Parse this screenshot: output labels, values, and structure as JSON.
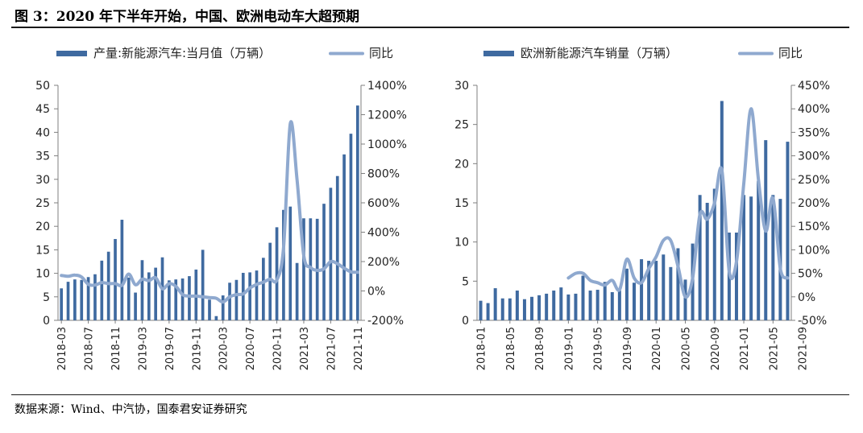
{
  "figure": {
    "title": "图 3：2020 年下半年开始，中国、欧洲电动车大超预期",
    "source": "数据来源：Wind、中汽协，国泰君安证券研究"
  },
  "colors": {
    "bar": "#3f6aa0",
    "line": "#8fa9cf",
    "axis": "#7f7f7f"
  },
  "chart_data": [
    {
      "type": "bar+line",
      "legend": {
        "bar": "产量:新能源汽车:当月值（万辆）",
        "line": "同比",
        "placement": "top"
      },
      "left_axis": {
        "ticks": [
          0,
          5,
          10,
          15,
          20,
          25,
          30,
          35,
          40,
          45,
          50
        ],
        "range": [
          0,
          50
        ]
      },
      "right_axis": {
        "ticks": [
          "-200%",
          "0%",
          "200%",
          "400%",
          "600%",
          "800%",
          "1000%",
          "1200%",
          "1400%"
        ],
        "range": [
          -200,
          1400
        ]
      },
      "x_tick_labels": [
        "2018-03",
        "2018-07",
        "2018-11",
        "2019-03",
        "2019-07",
        "2019-11",
        "2020-03",
        "2020-07",
        "2020-11",
        "2021-03",
        "2021-07",
        "2021-11"
      ],
      "x_start": "2018-03",
      "bar_values": [
        6.8,
        8.2,
        8.7,
        8.6,
        9.2,
        9.8,
        12.7,
        14.6,
        17.3,
        21.4,
        9.1,
        5.9,
        12.8,
        10.2,
        11.2,
        13.4,
        8.5,
        8.7,
        8.9,
        9.4,
        10.8,
        15.0,
        4.4,
        0.9,
        5.3,
        8.0,
        8.6,
        10.1,
        10.2,
        10.6,
        13.3,
        16.5,
        19.8,
        23.5,
        24.2,
        12.2,
        21.7,
        21.7,
        21.6,
        24.8,
        28.2,
        30.7,
        35.3,
        39.7,
        45.7
      ],
      "line_values": [
        106,
        100,
        108,
        95,
        45,
        40,
        57,
        50,
        50,
        38,
        115,
        42,
        80,
        70,
        90,
        15,
        50,
        32,
        -25,
        -35,
        -35,
        -40,
        -45,
        -50,
        -75,
        -40,
        -25,
        -20,
        20,
        45,
        60,
        80,
        75,
        295,
        1140,
        760,
        240,
        160,
        140,
        150,
        200,
        185,
        155,
        130,
        127
      ]
    },
    {
      "type": "bar+line",
      "legend": {
        "bar": "欧洲新能源汽车销量（万辆）",
        "line": "同比",
        "placement": "top"
      },
      "left_axis": {
        "ticks": [
          0,
          5,
          10,
          15,
          20,
          25,
          30
        ],
        "range": [
          0,
          30
        ]
      },
      "right_axis": {
        "ticks": [
          "-50%",
          "0%",
          "50%",
          "100%",
          "150%",
          "200%",
          "250%",
          "300%",
          "350%",
          "400%",
          "450%"
        ],
        "range": [
          -50,
          450
        ]
      },
      "x_tick_labels": [
        "2018-01",
        "2018-05",
        "2018-09",
        "2019-01",
        "2019-05",
        "2019-09",
        "2020-01",
        "2020-05",
        "2020-09",
        "2021-01",
        "2021-05",
        "2021-09"
      ],
      "x_start": "2018-01",
      "bar_values": [
        2.5,
        2.2,
        4.1,
        2.8,
        2.8,
        3.8,
        2.7,
        3.0,
        3.2,
        3.4,
        3.8,
        4.2,
        3.3,
        3.4,
        5.7,
        3.8,
        3.9,
        4.9,
        3.6,
        3.8,
        6.6,
        4.8,
        7.8,
        7.6,
        7.6,
        8.4,
        6.8,
        9.2,
        5.2,
        9.8,
        16.0,
        15.0,
        16.8,
        28.0,
        11.2,
        11.2,
        16.0,
        15.8,
        17.8,
        23.0,
        16.0,
        15.5,
        22.8
      ],
      "line_values": [
        null,
        null,
        null,
        null,
        null,
        null,
        null,
        null,
        null,
        null,
        null,
        null,
        40,
        50,
        50,
        35,
        30,
        25,
        35,
        15,
        80,
        40,
        30,
        60,
        85,
        120,
        120,
        65,
        0,
        40,
        175,
        165,
        200,
        270,
        55,
        75,
        240,
        400,
        250,
        140,
        210,
        60,
        40
      ]
    }
  ]
}
